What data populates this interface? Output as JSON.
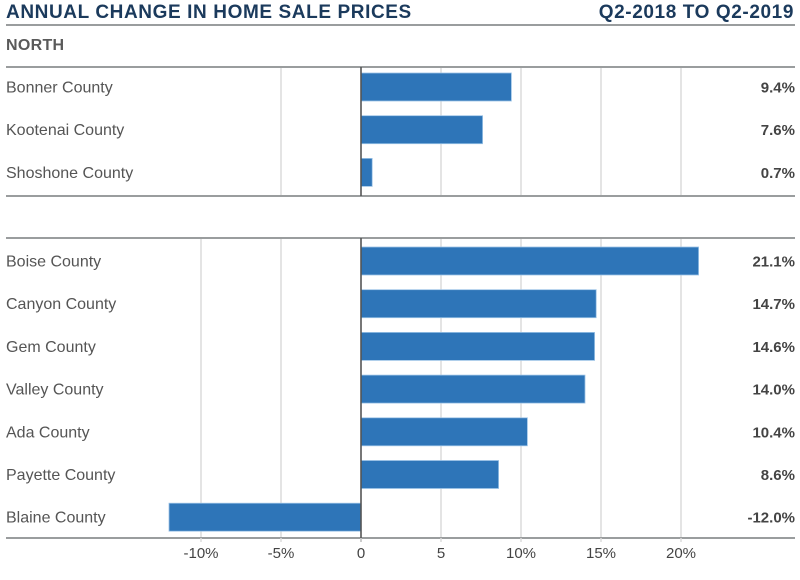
{
  "header": {
    "title": "ANNUAL CHANGE IN HOME SALE PRICES",
    "period": "Q2-2018 TO Q2-2019"
  },
  "colors": {
    "bar": "#2e75b8",
    "title": "#1b3a5c",
    "grid": "#dcdcdc",
    "zero_axis": "#555555",
    "rule": "#9a9d9e"
  },
  "chart_data": {
    "type": "bar",
    "orientation": "horizontal",
    "title": "ANNUAL CHANGE IN HOME SALE PRICES",
    "subtitle": "Q2-2018 TO Q2-2019",
    "xlabel": "",
    "ylabel": "",
    "xlim": [
      -15,
      25
    ],
    "grid": true,
    "panels": [
      {
        "label": "NORTH",
        "categories": [
          "Bonner County",
          "Kootenai County",
          "Shoshone County"
        ],
        "values": [
          9.4,
          7.6,
          0.7
        ],
        "value_labels": [
          "9.4%",
          "7.6%",
          "0.7%"
        ],
        "gridlines": [
          -5,
          5,
          10,
          15,
          20
        ]
      },
      {
        "label": "",
        "categories": [
          "Boise County",
          "Canyon County",
          "Gem County",
          "Valley County",
          "Ada County",
          "Payette County",
          "Blaine County"
        ],
        "values": [
          21.1,
          14.7,
          14.6,
          14.0,
          10.4,
          8.6,
          -12.0
        ],
        "value_labels": [
          "21.1%",
          "14.7%",
          "14.6%",
          "14.0%",
          "10.4%",
          "8.6%",
          "-12.0%"
        ],
        "gridlines": [
          -10,
          -5,
          5,
          10,
          15,
          20
        ]
      }
    ],
    "x_ticks": [
      -10,
      -5,
      0,
      5,
      10,
      15,
      20
    ],
    "x_tick_labels": [
      "-10%",
      "-5%",
      "0",
      "5",
      "10%",
      "15%",
      "20%"
    ]
  }
}
